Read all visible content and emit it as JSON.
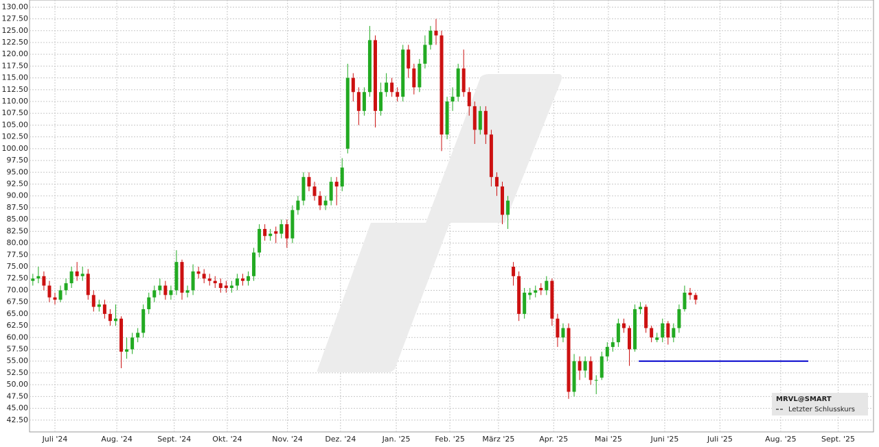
{
  "chart_data": {
    "type": "candlestick",
    "symbol": "MRVL@SMART",
    "up_color": "#22aa22",
    "down_color": "#cc1111",
    "xlim": [
      -0.6,
      152.2
    ],
    "ylim": [
      40,
      131.5
    ],
    "xticks": [
      {
        "value": 4.0,
        "label": "Juli '24"
      },
      {
        "value": 15.2,
        "label": "Aug. '24"
      },
      {
        "value": 25.6,
        "label": "Sept. '24"
      },
      {
        "value": 35.2,
        "label": "Okt. '24"
      },
      {
        "value": 46.1,
        "label": "Nov. '24"
      },
      {
        "value": 55.7,
        "label": "Dez. '24"
      },
      {
        "value": 65.8,
        "label": "Jan. '25"
      },
      {
        "value": 75.5,
        "label": "Feb. '25"
      },
      {
        "value": 84.3,
        "label": "März '25"
      },
      {
        "value": 94.3,
        "label": "Apr. '25"
      },
      {
        "value": 104.2,
        "label": "Mai '25"
      },
      {
        "value": 114.4,
        "label": "Juni '25"
      },
      {
        "value": 124.4,
        "label": "Juli '25"
      },
      {
        "value": 135.4,
        "label": "Aug. '25"
      },
      {
        "value": 145.8,
        "label": "Sept. '25"
      }
    ],
    "yticks": [
      {
        "value": 42.5,
        "label": "42.50"
      },
      {
        "value": 45,
        "label": "45.00"
      },
      {
        "value": 47.5,
        "label": "47.50"
      },
      {
        "value": 50,
        "label": "50.00"
      },
      {
        "value": 52.5,
        "label": "52.50"
      },
      {
        "value": 55,
        "label": "55.00"
      },
      {
        "value": 57.5,
        "label": "57.50"
      },
      {
        "value": 60,
        "label": "60.00"
      },
      {
        "value": 62.5,
        "label": "62.50"
      },
      {
        "value": 65,
        "label": "65.00"
      },
      {
        "value": 67.5,
        "label": "67.50"
      },
      {
        "value": 70,
        "label": "70.00"
      },
      {
        "value": 72.5,
        "label": "72.50"
      },
      {
        "value": 75,
        "label": "75.00"
      },
      {
        "value": 77.5,
        "label": "77.50"
      },
      {
        "value": 80,
        "label": "80.00"
      },
      {
        "value": 82.5,
        "label": "82.50"
      },
      {
        "value": 85,
        "label": "85.00"
      },
      {
        "value": 87.5,
        "label": "87.50"
      },
      {
        "value": 90,
        "label": "90.00"
      },
      {
        "value": 92.5,
        "label": "92.50"
      },
      {
        "value": 95,
        "label": "95.00"
      },
      {
        "value": 97.5,
        "label": "97.50"
      },
      {
        "value": 100,
        "label": "100.00"
      },
      {
        "value": 102.5,
        "label": "102.50"
      },
      {
        "value": 105,
        "label": "105.00"
      },
      {
        "value": 107.5,
        "label": "107.50"
      },
      {
        "value": 110,
        "label": "110.00"
      },
      {
        "value": 112.5,
        "label": "112.50"
      },
      {
        "value": 115,
        "label": "115.00"
      },
      {
        "value": 117.5,
        "label": "117.50"
      },
      {
        "value": 120,
        "label": "120.00"
      },
      {
        "value": 122.5,
        "label": "122.50"
      },
      {
        "value": 125,
        "label": "125.00"
      },
      {
        "value": 127.5,
        "label": "127.50"
      },
      {
        "value": 130,
        "label": "130.00"
      }
    ],
    "grid": true,
    "open": [
      72,
      72.5,
      73,
      71,
      68.5,
      68,
      70,
      71.5,
      74,
      73,
      73.5,
      69,
      66.5,
      67,
      65,
      63.5,
      64,
      57,
      57.5,
      60,
      61,
      66,
      68.5,
      70,
      71,
      69,
      70,
      76,
      69.5,
      70,
      74,
      73.5,
      72.5,
      72,
      71.5,
      71,
      70.5,
      71,
      72.5,
      72,
      73,
      78,
      83,
      81.5,
      82.5,
      82,
      84,
      81,
      87,
      89,
      94,
      92,
      90,
      88,
      89,
      93,
      92,
      100,
      115,
      112,
      108,
      112,
      123,
      108,
      112,
      114,
      112,
      111,
      121,
      117,
      113,
      118,
      122,
      125,
      124,
      103,
      110,
      111,
      117,
      112,
      109,
      104,
      108,
      103,
      94,
      92,
      86,
      75,
      73,
      65,
      69,
      69.5,
      70.5,
      70,
      72,
      64,
      60,
      62,
      48.5,
      55,
      53,
      55,
      51,
      51.5,
      56,
      58,
      59,
      63,
      62,
      57.5,
      66,
      66.5,
      62,
      59.5,
      60,
      63,
      60,
      62,
      66,
      69.5,
      69
    ],
    "high": [
      73.5,
      75,
      74,
      72,
      69.5,
      71,
      72.5,
      75,
      76,
      75,
      74.5,
      70,
      68,
      68,
      66,
      67,
      64.5,
      60,
      61,
      62,
      67,
      69.5,
      71,
      72.5,
      72,
      71,
      78.5,
      76.5,
      71,
      75.5,
      75,
      74.5,
      73.5,
      73,
      72.5,
      72,
      72,
      73.5,
      73.5,
      74,
      79,
      84,
      84,
      83,
      83.5,
      85,
      85,
      88,
      90,
      95,
      95,
      93,
      91,
      90,
      94,
      94,
      98,
      118,
      116,
      113,
      113,
      126,
      124,
      114,
      116,
      115,
      113,
      122,
      122,
      118,
      119,
      124,
      126,
      127.5,
      125,
      111,
      113,
      118,
      121,
      113,
      110,
      109,
      109,
      104,
      95,
      93,
      90,
      76,
      74,
      70.5,
      70.5,
      71,
      71.5,
      73,
      72.5,
      65,
      63,
      63,
      56.5,
      56,
      56,
      56,
      52,
      57,
      59,
      60,
      64,
      64,
      62.5,
      67,
      67.5,
      67,
      62.5,
      61,
      64,
      63.5,
      63,
      67,
      71,
      70.5,
      69.5
    ],
    "low": [
      71,
      71.5,
      70,
      67.5,
      67,
      67.5,
      69,
      70.5,
      72,
      72,
      68,
      65.5,
      65.5,
      64,
      62.5,
      62.5,
      53.5,
      55.5,
      56.5,
      59,
      60,
      65,
      67.5,
      69,
      68,
      68,
      69,
      68,
      68.5,
      69,
      72.5,
      71.5,
      71,
      70.5,
      69.5,
      69.5,
      69.5,
      70,
      71,
      71,
      72,
      77,
      80.5,
      80.5,
      80,
      81,
      79,
      80,
      86,
      88,
      91,
      89,
      87,
      87,
      88,
      88,
      91,
      99,
      110,
      105,
      107,
      111,
      104.5,
      107,
      111,
      111,
      110,
      110,
      115,
      111.5,
      112,
      117,
      121,
      122,
      99.5,
      102,
      108,
      110,
      111,
      107,
      101,
      103,
      101,
      92,
      90,
      84,
      83,
      71,
      63.5,
      64,
      68,
      68.5,
      69,
      69,
      62.5,
      58,
      59,
      47,
      47.5,
      51,
      51.5,
      50,
      48,
      51,
      55,
      57,
      58,
      61,
      54,
      57,
      65,
      61,
      59,
      59,
      59,
      58.5,
      59,
      61,
      65.5,
      68,
      67
    ],
    "close": [
      72.5,
      73,
      71,
      68.5,
      68,
      70,
      71.5,
      74,
      73,
      73.5,
      69,
      66.5,
      67,
      65,
      63.5,
      64,
      57,
      57.5,
      60,
      61,
      66,
      68.5,
      70,
      71,
      69,
      70,
      76,
      69.5,
      70,
      74,
      73.5,
      72.5,
      72,
      71.5,
      70.5,
      70.5,
      71,
      72.5,
      72,
      73,
      78,
      83,
      81.5,
      82,
      82,
      84,
      81,
      87,
      89,
      94,
      92,
      90,
      88,
      89,
      93,
      92,
      96,
      115,
      112,
      108,
      112,
      123,
      108,
      112,
      114,
      112,
      111,
      121,
      117,
      113,
      118,
      122,
      125,
      124,
      103,
      110,
      111,
      117,
      112,
      109,
      104,
      108,
      103,
      94,
      92,
      86,
      89,
      73,
      65,
      69.5,
      69.5,
      70,
      70,
      72,
      64,
      60,
      62,
      48.5,
      55,
      53,
      55,
      51,
      51,
      56,
      58,
      59,
      63,
      62,
      57.5,
      66,
      66.5,
      62,
      60,
      60,
      63,
      60,
      62,
      66,
      69.5,
      69,
      68
    ],
    "reference_line": {
      "name": "Letzter Schlusskurs",
      "value": 55,
      "x": [
        109.7,
        140.4
      ],
      "color": "#0000cc"
    }
  }
}
